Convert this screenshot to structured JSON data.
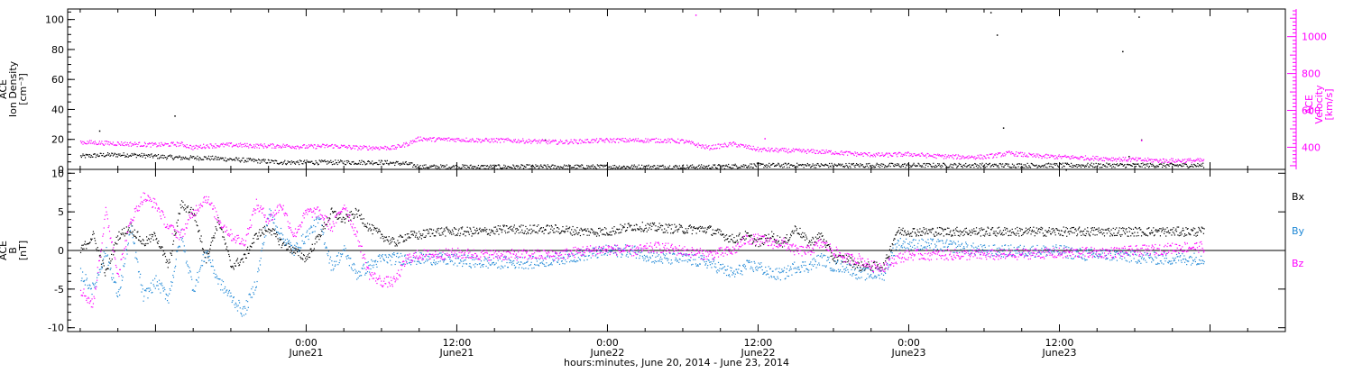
{
  "chart_data": [
    {
      "type": "scatter",
      "panel": "top",
      "left_ylabel": [
        "ACE",
        "Ion Density",
        "[cm⁻³]"
      ],
      "right_ylabel": [
        "ACE",
        "Velocity",
        "[km/s]"
      ],
      "y_left_ticks": [
        0,
        20,
        40,
        60,
        80,
        100
      ],
      "y_left_lim": [
        0,
        107
      ],
      "y_right_ticks": [
        400,
        600,
        800,
        1000
      ],
      "y_right_lim": [
        280,
        1150
      ],
      "series": [
        {
          "axis": "left",
          "color": "#000000",
          "spread": 1.5,
          "x": [
            -18,
            -16,
            -14,
            -12,
            -10,
            -8,
            -6,
            -4,
            -2,
            0,
            2,
            4,
            6,
            8,
            9,
            10,
            12,
            14,
            16,
            18,
            20,
            24,
            28,
            32,
            36,
            40,
            44,
            48,
            52,
            56,
            60,
            62,
            64,
            66,
            68,
            70,
            71.5
          ],
          "y": [
            9,
            10,
            10,
            9,
            8,
            8,
            7,
            6,
            5,
            5,
            5,
            5,
            5,
            4,
            2,
            2,
            2,
            2,
            2,
            2,
            2,
            2,
            2,
            2,
            3,
            3,
            3,
            3,
            3,
            3,
            3,
            3,
            3,
            3,
            3,
            3,
            3
          ],
          "outliers": {
            "x": [
              -16.5,
              -10.5,
              19,
              54.5,
              55,
              55.5,
              60.5,
              65,
              65.5,
              66.3,
              66.5
            ],
            "y": [
              26,
              36,
              20,
              105,
              90,
              28,
              0,
              79,
              9,
              102,
              20
            ]
          }
        },
        {
          "axis": "right",
          "color": "#ff00ff",
          "spread": 12,
          "x": [
            -18,
            -16,
            -14,
            -12,
            -10,
            -9,
            -8,
            -6,
            -4,
            -2,
            0,
            2,
            4,
            6,
            7,
            8,
            9,
            10,
            12,
            14,
            16,
            18,
            20,
            22,
            24,
            26,
            28,
            30,
            32,
            34,
            36,
            38,
            40,
            42,
            44,
            46,
            48,
            50,
            52,
            54,
            56,
            58,
            60,
            62,
            64,
            66,
            68,
            70,
            71.5
          ],
          "y": [
            430,
            425,
            420,
            415,
            420,
            400,
            410,
            415,
            410,
            410,
            405,
            410,
            400,
            400,
            400,
            420,
            450,
            445,
            445,
            440,
            440,
            435,
            430,
            435,
            440,
            440,
            440,
            435,
            400,
            420,
            390,
            385,
            380,
            375,
            365,
            360,
            365,
            355,
            350,
            350,
            370,
            355,
            350,
            345,
            340,
            335,
            330,
            330,
            330
          ],
          "outliers": {
            "x": [
              31,
              36.5,
              66.5
            ],
            "y": [
              1120,
              450,
              440
            ]
          }
        }
      ]
    },
    {
      "type": "scatter",
      "panel": "bottom",
      "left_ylabel": [
        "ACE",
        "B",
        "[nT]"
      ],
      "y_ticks": [
        -10,
        -5,
        0,
        5,
        10
      ],
      "y_lim": [
        -10.5,
        10.5
      ],
      "x_lim": [
        -19,
        78
      ],
      "x_ticks_major": [
        0,
        12,
        24,
        36,
        48,
        60
      ],
      "x_tick_labels": [
        [
          "0:00",
          "June21"
        ],
        [
          "12:00",
          "June21"
        ],
        [
          "0:00",
          "June22"
        ],
        [
          "12:00",
          "June22"
        ],
        [
          "0:00",
          "June23"
        ],
        [
          "12:00",
          "June23"
        ]
      ],
      "xlabel": "hours:minutes, June 20, 2014 - June 23, 2014",
      "legend": [
        {
          "name": "Bx",
          "color": "#000000"
        },
        {
          "name": "By",
          "color": "#1f88d6"
        },
        {
          "name": "Bz",
          "color": "#ff00ff"
        }
      ],
      "series": [
        {
          "name": "Bx",
          "color": "#000000",
          "spread": 0.6,
          "x": [
            -18,
            -17,
            -16,
            -15,
            -14,
            -13,
            -12,
            -11,
            -10,
            -9,
            -8,
            -7,
            -6,
            -5,
            -4,
            -3,
            -2,
            -1,
            0,
            1,
            2,
            3,
            4,
            5,
            6,
            7,
            8,
            9,
            10,
            12,
            14,
            16,
            18,
            20,
            22,
            24,
            26,
            28,
            30,
            32,
            34,
            35,
            36,
            37,
            38,
            39,
            40,
            41,
            42,
            43,
            44,
            45,
            46,
            47,
            48,
            50,
            52,
            54,
            56,
            58,
            60,
            62,
            64,
            66,
            68,
            70,
            71.5
          ],
          "y": [
            0,
            2,
            -3,
            2,
            3,
            1,
            2,
            -2,
            6,
            5,
            -1,
            4,
            -2,
            -1,
            2,
            3,
            1,
            0,
            -1,
            2,
            5,
            4,
            5,
            3,
            2,
            1,
            2,
            2,
            2.5,
            2.5,
            2.5,
            2.8,
            2.8,
            2.8,
            2.5,
            2.5,
            3.2,
            3,
            2.8,
            2.8,
            1.5,
            2,
            1,
            2,
            1,
            3,
            1,
            2,
            -1,
            -1,
            -2,
            -2,
            -2,
            2.5,
            2.5,
            2.5,
            2.5,
            2.5,
            2.5,
            2.5,
            2.5,
            2.5,
            2.5,
            2.5,
            2.5,
            2.5,
            2.5
          ]
        },
        {
          "name": "By",
          "color": "#1f88d6",
          "spread": 0.8,
          "x": [
            -18,
            -17,
            -16,
            -15,
            -14,
            -13,
            -12,
            -11,
            -10,
            -9,
            -8,
            -7,
            -6,
            -5,
            -4,
            -3,
            -2,
            -1,
            0,
            1,
            2,
            3,
            4,
            5,
            6,
            7,
            8,
            9,
            10,
            12,
            14,
            16,
            18,
            20,
            22,
            24,
            26,
            28,
            30,
            32,
            34,
            35,
            36,
            37,
            38,
            39,
            40,
            41,
            42,
            43,
            44,
            45,
            46,
            47,
            48,
            50,
            52,
            54,
            56,
            58,
            60,
            62,
            64,
            66,
            68,
            70,
            71.5
          ],
          "y": [
            -3,
            -5,
            0,
            -6,
            3,
            -6,
            -4,
            -6,
            2,
            -5,
            0,
            -4,
            -6,
            -8,
            -4,
            5,
            2,
            0,
            2,
            4,
            -2,
            0,
            -3,
            -2,
            -1,
            -1,
            -1,
            -1,
            -1,
            -1.2,
            -1.5,
            -1.5,
            -1.5,
            -1,
            -0.5,
            0,
            0,
            -1,
            -1,
            -1.5,
            -3,
            -2,
            -2,
            -3,
            -3,
            -2,
            -2,
            -1,
            -2,
            -2,
            -3,
            -3,
            -3,
            1,
            0.8,
            0.8,
            0.5,
            0,
            0,
            0,
            0,
            -0.5,
            -0.5,
            -0.8,
            -1,
            -1,
            -1
          ]
        },
        {
          "name": "Bz",
          "color": "#ff00ff",
          "spread": 0.7,
          "x": [
            -18,
            -17,
            -16,
            -15,
            -14,
            -13,
            -12,
            -11,
            -10,
            -9,
            -8,
            -7,
            -6,
            -5,
            -4,
            -3,
            -2,
            -1,
            0,
            1,
            2,
            3,
            4,
            5,
            6,
            7,
            8,
            9,
            10,
            12,
            14,
            16,
            18,
            20,
            22,
            24,
            26,
            28,
            30,
            32,
            34,
            35,
            36,
            37,
            38,
            39,
            40,
            41,
            42,
            43,
            44,
            45,
            46,
            47,
            48,
            50,
            52,
            54,
            56,
            58,
            60,
            62,
            64,
            66,
            68,
            70,
            71.5
          ],
          "y": [
            -5,
            -7,
            5,
            -3,
            4,
            7,
            6,
            3,
            2,
            5,
            7,
            4,
            2,
            1,
            6,
            4,
            6,
            2,
            5,
            5,
            3,
            6,
            2,
            -3,
            -4,
            -4,
            -1,
            -0.5,
            -0.5,
            -0.3,
            -0.5,
            -0.5,
            -0.5,
            -0.5,
            0,
            0.2,
            0,
            0.5,
            0,
            -0.5,
            0,
            1.5,
            1.5,
            1,
            1,
            0,
            0,
            1,
            0,
            -1,
            -1,
            -2,
            -2,
            -1,
            -0.5,
            -0.5,
            -0.5,
            -0.5,
            -0.5,
            -0.3,
            -0.3,
            -0.2,
            -0.2,
            0,
            0.2,
            0.5,
            0.5
          ]
        }
      ]
    }
  ]
}
